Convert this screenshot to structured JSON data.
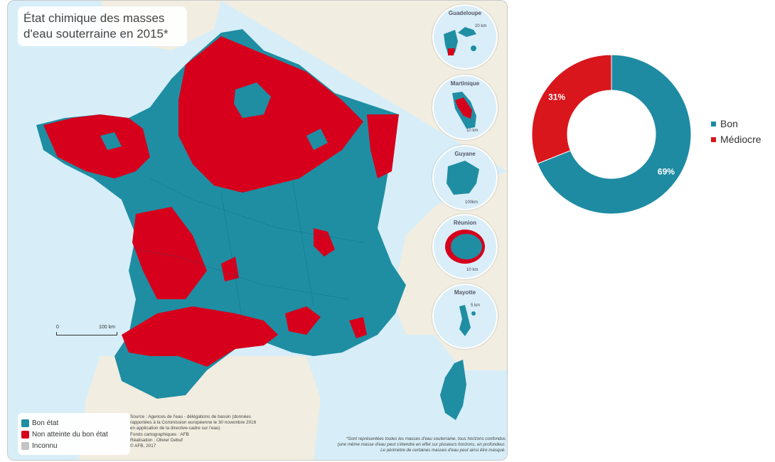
{
  "map": {
    "title_line1": "État chimique des masses",
    "title_line2": "d'eau souterraine en 2015*",
    "scale_0": "0",
    "scale_100": "100 km",
    "insets": [
      {
        "name": "Guadeloupe",
        "scale": "20 km"
      },
      {
        "name": "Martinique",
        "scale": "10 km"
      },
      {
        "name": "Guyane",
        "scale": "100km"
      },
      {
        "name": "Réunion",
        "scale": "10 km"
      },
      {
        "name": "Mayotte",
        "scale": "5 km"
      }
    ],
    "legend": [
      {
        "label": "Bon état",
        "color": "#1f8ea3"
      },
      {
        "label": "Non atteinte du bon état",
        "color": "#d6001c"
      },
      {
        "label": "Inconnu",
        "color": "#c4c4c4"
      }
    ],
    "source_lines": [
      "Source : Agences de l'eau - délégations de bassin (données",
      "rapportées à la Commission européenne le 30 novembre 2016",
      "en application de la directive-cadre sur l'eau)",
      "Fonds cartographiques : AFB",
      "Réalisation : Olivier Debuf",
      "© AFB, 2017"
    ],
    "footnote_lines": [
      "*Sont représentées toutes les masses d'eau souterraine, tous horizons confondus",
      "(une même masse d'eau peut s'étendre en effet sur plusieurs horizons, en profondeur.",
      "Le périmètre de certaines masses d'eau peut ainsi être masqué."
    ]
  },
  "colors": {
    "bon": "#1f8ea3",
    "mediocre": "#d6001c",
    "inconnu": "#c4c4c4",
    "sea": "#d7eef8",
    "land": "#f1ede0"
  },
  "chart_data": {
    "type": "pie",
    "donut": true,
    "categories": [
      "Bon",
      "Médiocre"
    ],
    "values": [
      69,
      31
    ],
    "labels": [
      "69%",
      "31%"
    ],
    "colors": [
      "#1e8ba3",
      "#d8161c"
    ],
    "legend_position": "right"
  }
}
